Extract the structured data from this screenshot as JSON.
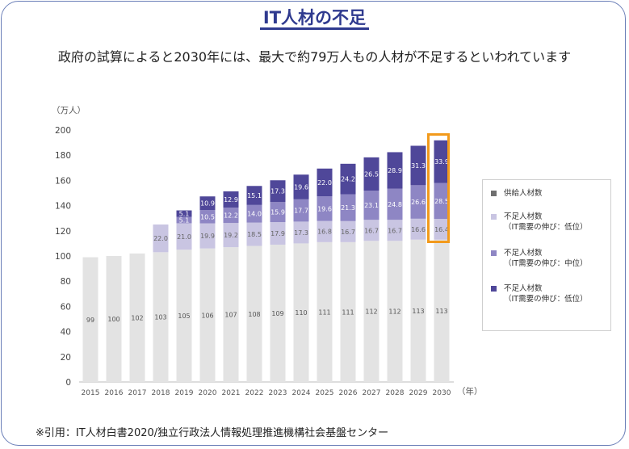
{
  "page": {
    "title": "IT人材の不足",
    "subtitle": "政府の試算によると2030年には、最大で約79万人もの人材が不足するといわれています",
    "source": "※引用：IT人材白書2020/独立行政法人情報処理推進機構社会基盤センター"
  },
  "chart_data": {
    "type": "bar",
    "stacked": true,
    "y_unit_label": "（万人）",
    "x_unit_label": "（年）",
    "ylim": [
      0,
      200
    ],
    "yticks": [
      0,
      20,
      40,
      60,
      80,
      100,
      120,
      140,
      160,
      180,
      200
    ],
    "categories": [
      "2015",
      "2016",
      "2017",
      "2018",
      "2019",
      "2020",
      "2021",
      "2022",
      "2023",
      "2024",
      "2025",
      "2026",
      "2027",
      "2028",
      "2029",
      "2030"
    ],
    "series": [
      {
        "name": "供給人材数",
        "color": "#e3e3e3",
        "values": [
          99,
          100,
          102,
          103,
          105,
          106,
          107,
          108,
          109,
          110,
          111,
          111,
          112,
          112,
          113,
          113
        ]
      },
      {
        "name": "不足人材数\n（IT需要の伸び：低位）",
        "color": "#c9c5e2",
        "values": [
          null,
          null,
          null,
          22.0,
          21.0,
          19.9,
          19.2,
          18.5,
          17.9,
          17.3,
          16.8,
          16.7,
          16.7,
          16.7,
          16.6,
          16.4
        ]
      },
      {
        "name": "不足人材数\n（IT需要の伸び：中位）",
        "color": "#8e86c4",
        "values": [
          null,
          null,
          null,
          null,
          5.1,
          10.5,
          12.2,
          14.0,
          15.9,
          17.7,
          19.6,
          21.3,
          23.1,
          24.8,
          26.6,
          28.5
        ]
      },
      {
        "name": " 不足人材数\n（IT需要の伸び：低位）",
        "color": "#4f4799",
        "values": [
          null,
          null,
          null,
          null,
          5.1,
          10.9,
          12.9,
          15.1,
          17.3,
          19.6,
          22.0,
          24.2,
          26.5,
          28.9,
          31.3,
          33.9
        ]
      }
    ],
    "grid": false,
    "legend_position": "right"
  }
}
